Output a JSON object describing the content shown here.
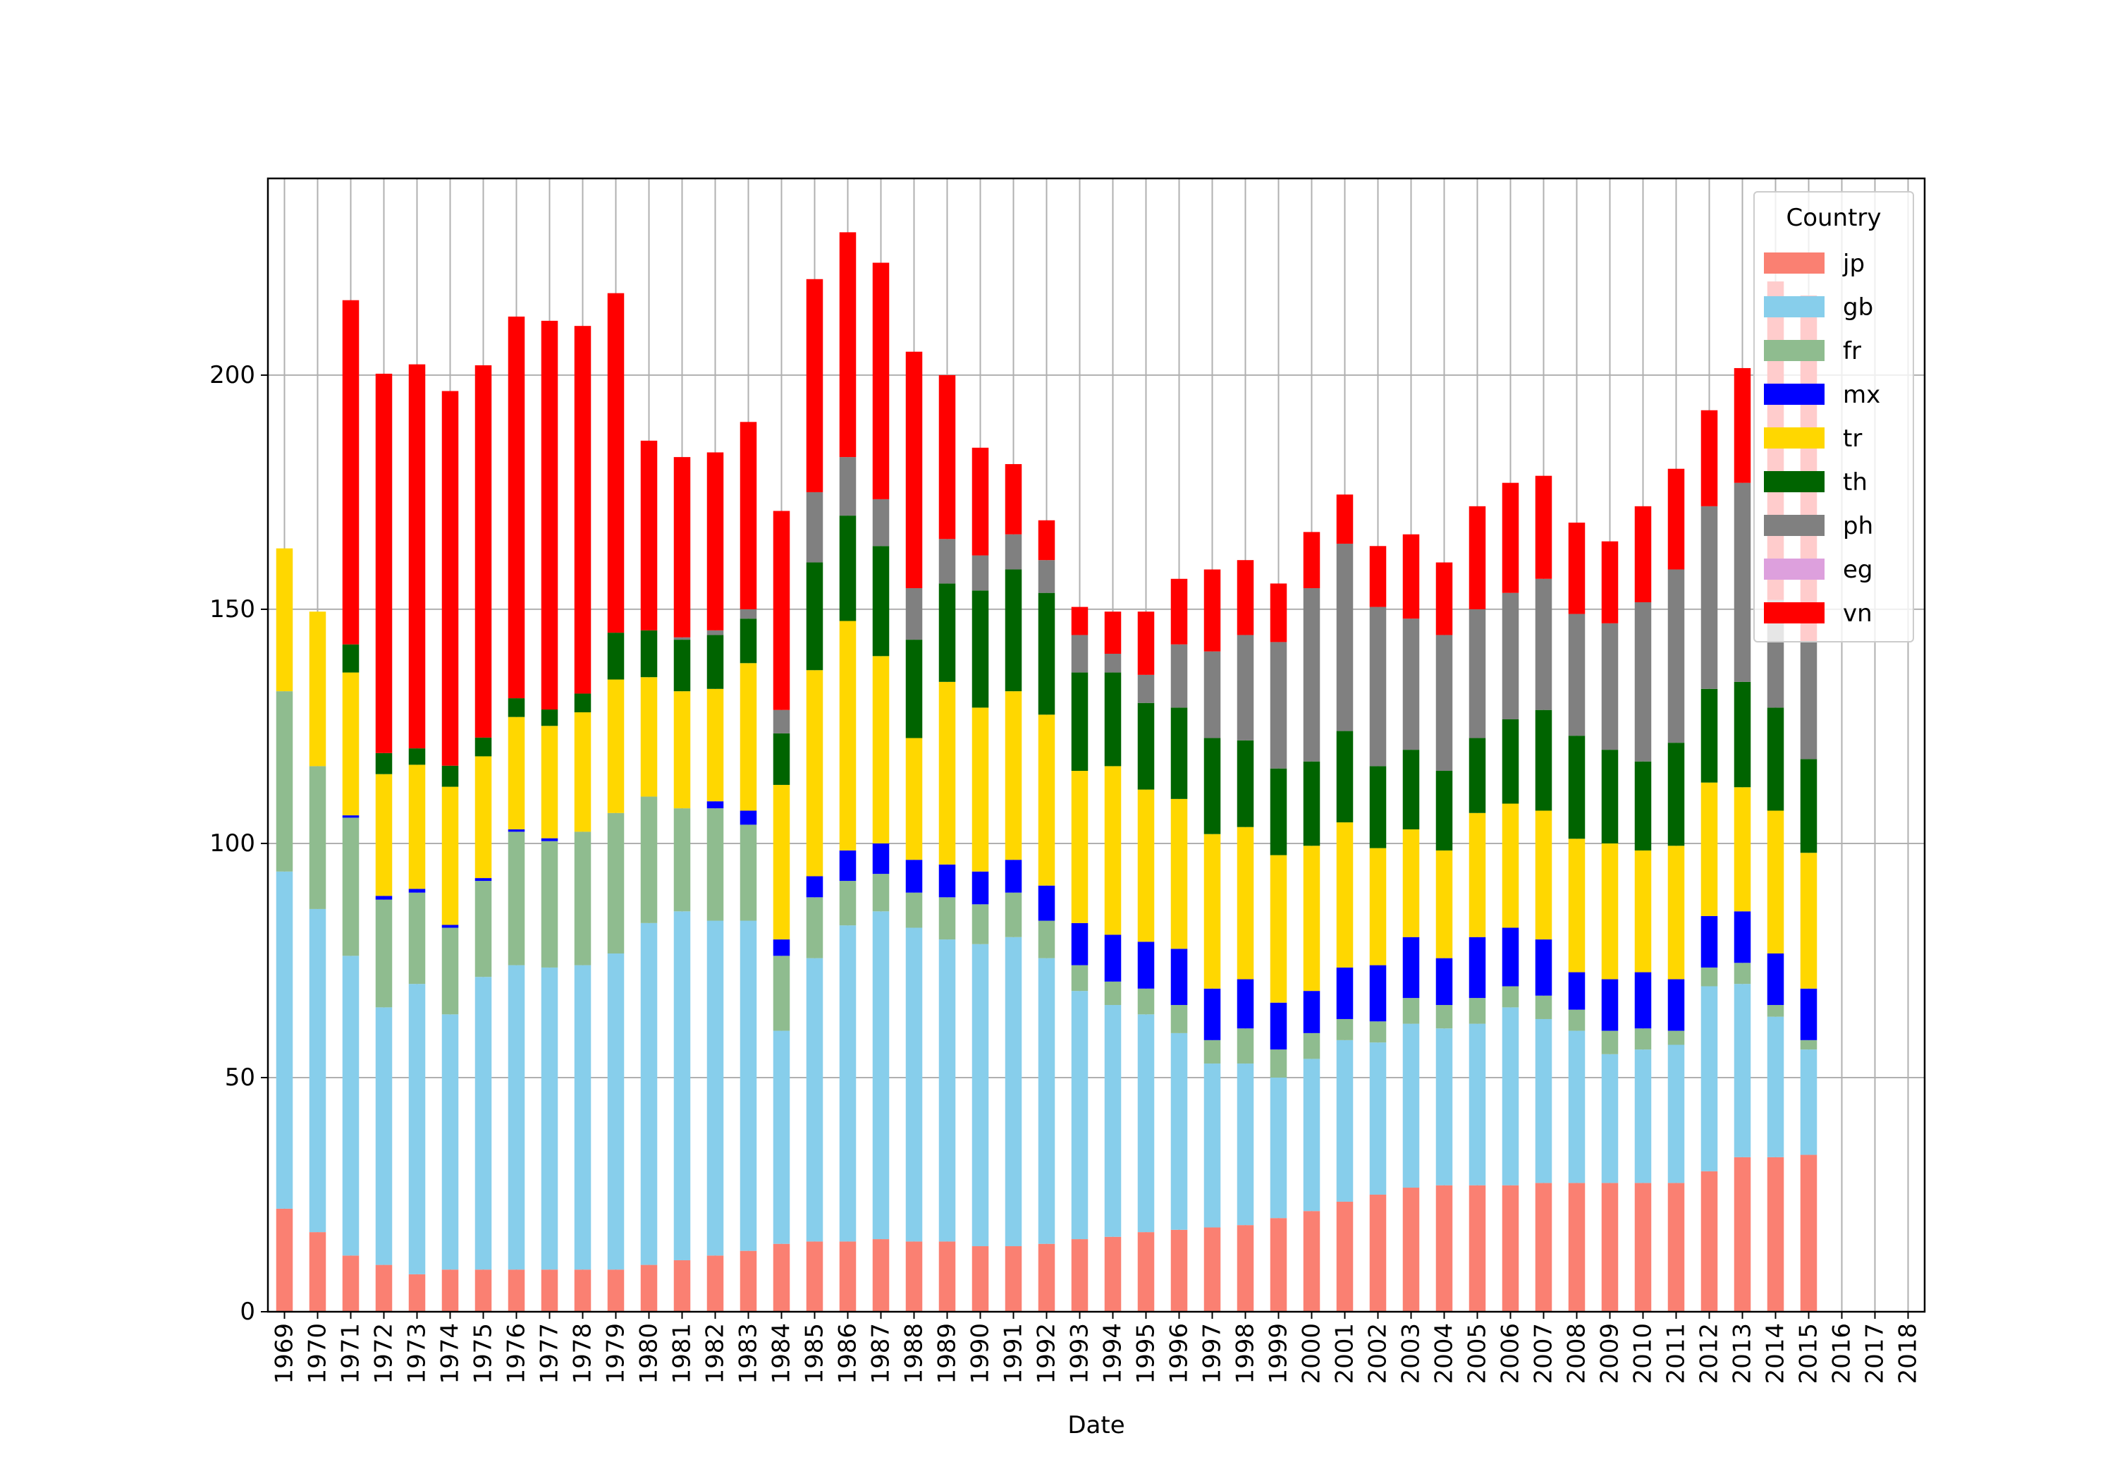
{
  "chart_data": {
    "type": "bar",
    "stacked": true,
    "title": "",
    "xlabel": "Date",
    "ylabel": "",
    "ylim": [
      0,
      242
    ],
    "yticks": [
      0,
      50,
      100,
      150,
      200
    ],
    "grid": true,
    "legend": {
      "title": "Country",
      "position": "top-right"
    },
    "categories": [
      "1969",
      "1970",
      "1971",
      "1972",
      "1973",
      "1974",
      "1975",
      "1976",
      "1977",
      "1978",
      "1979",
      "1980",
      "1981",
      "1982",
      "1983",
      "1984",
      "1985",
      "1986",
      "1987",
      "1988",
      "1989",
      "1990",
      "1991",
      "1992",
      "1993",
      "1994",
      "1995",
      "1996",
      "1997",
      "1998",
      "1999",
      "2000",
      "2001",
      "2002",
      "2003",
      "2004",
      "2005",
      "2006",
      "2007",
      "2008",
      "2009",
      "2010",
      "2011",
      "2012",
      "2013",
      "2014",
      "2015",
      "2016",
      "2017",
      "2018"
    ],
    "series": [
      {
        "name": "jp",
        "color": "#fa8072",
        "values": [
          22,
          17,
          12,
          10,
          8,
          9,
          9,
          9,
          9,
          9,
          9,
          10,
          11,
          12,
          13,
          14.5,
          15,
          15,
          15.5,
          15,
          15,
          14,
          14,
          14.5,
          15.5,
          16,
          17,
          17.5,
          18,
          18.5,
          20,
          21.5,
          23.5,
          25,
          26.5,
          27,
          27,
          27,
          27.5,
          27.5,
          27.5,
          27.5,
          27.5,
          30,
          33,
          33,
          33.5,
          0,
          0,
          0
        ]
      },
      {
        "name": "gb",
        "color": "#87ceeb",
        "values": [
          72,
          69,
          64,
          55,
          62,
          54.5,
          62.5,
          65,
          64.5,
          65,
          67.5,
          73,
          74.5,
          71.5,
          70.5,
          45.5,
          60.5,
          67.5,
          70,
          67,
          64.5,
          64.5,
          66,
          61,
          53,
          49.5,
          46.5,
          42,
          35,
          34.5,
          30,
          32.5,
          34.5,
          32.5,
          35,
          33.5,
          34.5,
          38,
          35,
          32.5,
          27.5,
          28.5,
          29.5,
          39.5,
          37,
          30,
          22.5,
          0,
          0,
          0
        ]
      },
      {
        "name": "fr",
        "color": "#8fbc8f",
        "values": [
          38.5,
          30.5,
          29.5,
          23,
          19.5,
          18.5,
          20.5,
          28.5,
          27,
          28.5,
          30,
          27,
          22,
          24,
          20.5,
          16,
          13,
          9.5,
          8,
          7.5,
          9,
          8.5,
          9.5,
          8,
          5.5,
          5,
          5.5,
          6,
          5,
          7.5,
          6,
          5.5,
          4.5,
          4.5,
          5.5,
          5,
          5.5,
          4.5,
          5,
          4.5,
          5,
          4.5,
          3,
          4,
          4.5,
          2.5,
          2,
          0,
          0,
          0
        ]
      },
      {
        "name": "mx",
        "color": "#0000ff",
        "values": [
          0,
          0,
          0.5,
          0.8,
          0.8,
          0.6,
          0.6,
          0.5,
          0.6,
          0,
          0,
          0,
          0,
          1.5,
          3,
          3.5,
          4.5,
          6.5,
          6.5,
          7,
          7,
          7,
          7,
          7.5,
          9,
          10,
          10,
          12,
          11,
          10.5,
          10,
          9,
          11,
          12,
          13,
          10,
          13,
          12.5,
          12,
          8,
          11,
          12,
          11,
          11,
          11,
          11,
          11,
          0,
          0,
          0
        ]
      },
      {
        "name": "tr",
        "color": "#ffd700",
        "values": [
          30.5,
          33,
          30.5,
          26,
          26.5,
          29.5,
          26,
          24,
          24,
          25.5,
          28.5,
          25.5,
          25,
          24,
          31.5,
          33,
          44,
          49,
          40,
          26,
          39,
          35,
          36,
          36.5,
          32.5,
          36,
          32.5,
          32,
          33,
          32.5,
          31.5,
          31,
          31,
          25,
          23,
          23,
          26.5,
          26.5,
          27.5,
          28.5,
          29,
          26,
          28.5,
          28.5,
          26.5,
          30.5,
          29,
          0,
          0,
          0
        ]
      },
      {
        "name": "th",
        "color": "#006400",
        "values": [
          0,
          0,
          6,
          4.5,
          3.5,
          4.5,
          4,
          4,
          3.5,
          4,
          10,
          10,
          11,
          11.5,
          9.5,
          11,
          23,
          22.5,
          23.5,
          21,
          21,
          25,
          26,
          26,
          21,
          20,
          18.5,
          19.5,
          20.5,
          18.5,
          18.5,
          18,
          19.5,
          17.5,
          17,
          17,
          16,
          18,
          21.5,
          22,
          20,
          19,
          22,
          20,
          22.5,
          22,
          20,
          0,
          0,
          0
        ]
      },
      {
        "name": "ph",
        "color": "#808080",
        "values": [
          0,
          0,
          0,
          0,
          0,
          0,
          0,
          0,
          0,
          0,
          0,
          0,
          0.5,
          1,
          2,
          5,
          15,
          12.5,
          10,
          11,
          9.5,
          7.5,
          7.5,
          7,
          8,
          4,
          6,
          13.5,
          18.5,
          22.5,
          27,
          37,
          40,
          34,
          28,
          29,
          27.5,
          27,
          28,
          26,
          27,
          34,
          37,
          39,
          42.5,
          23,
          25,
          0,
          0,
          0
        ]
      },
      {
        "name": "eg",
        "color": "#dda0dd",
        "values": [
          0,
          0,
          0,
          0,
          0,
          0,
          0,
          0,
          0,
          0,
          0,
          0,
          0,
          0,
          0,
          0,
          0,
          0,
          0,
          0,
          0,
          0,
          0,
          0,
          0,
          0,
          0,
          0,
          0,
          0,
          0,
          0,
          0,
          0,
          0,
          0,
          0,
          0,
          0,
          0,
          0,
          0,
          0,
          0,
          0,
          0,
          0,
          0,
          0,
          0
        ]
      },
      {
        "name": "vn",
        "color": "#ff0000",
        "values": [
          0,
          0,
          73.5,
          81,
          82,
          80,
          79.5,
          81.5,
          83,
          78.5,
          72.5,
          40.5,
          38.5,
          38,
          40,
          42.5,
          45.5,
          48,
          50.5,
          50.5,
          35,
          23,
          15,
          8.5,
          6,
          9,
          13.5,
          14,
          17.5,
          16,
          12.5,
          12,
          10.5,
          13,
          18,
          15.5,
          22,
          23.5,
          22,
          19.5,
          17.5,
          20.5,
          21.5,
          20.5,
          24.5,
          68,
          74,
          0,
          0,
          0
        ]
      }
    ]
  }
}
